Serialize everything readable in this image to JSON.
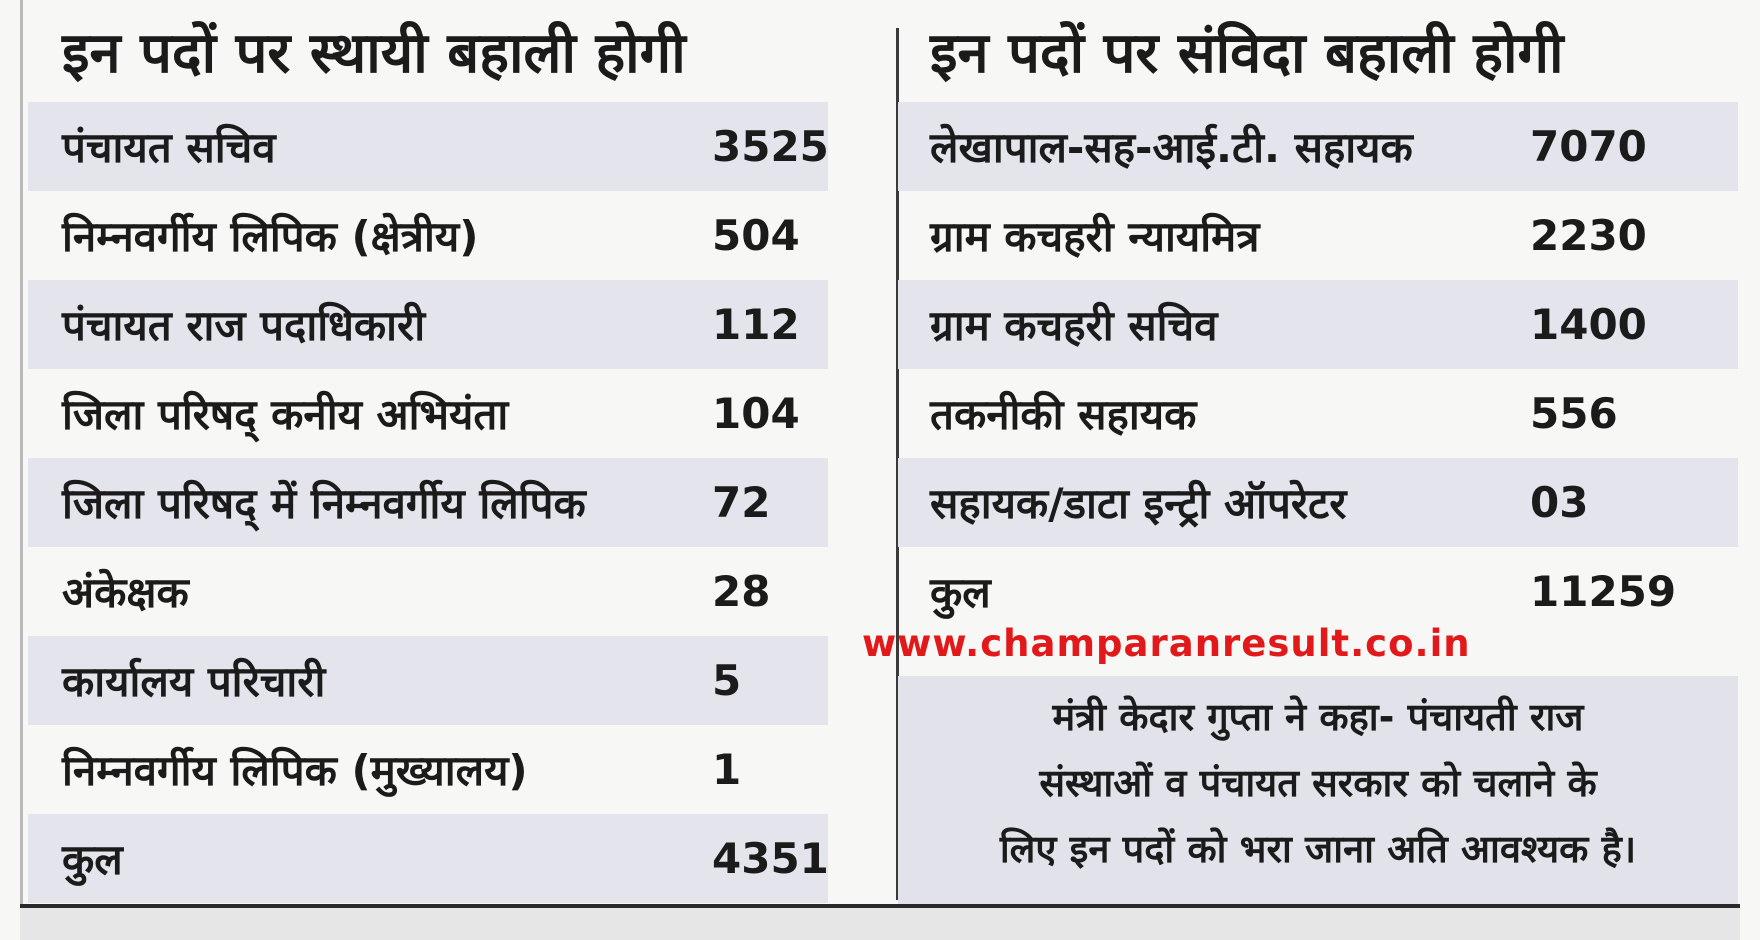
{
  "left": {
    "heading": "इन पदों पर स्थायी बहाली होगी",
    "rows": [
      {
        "label": "पंचायत सचिव",
        "value": "3525"
      },
      {
        "label": "निम्नवर्गीय लिपिक (क्षेत्रीय)",
        "value": "504"
      },
      {
        "label": "पंचायत राज पदाधिकारी",
        "value": "112"
      },
      {
        "label": "जिला परिषद् कनीय अभियंता",
        "value": "104"
      },
      {
        "label": "जिला परिषद् में निम्नवर्गीय लिपिक",
        "value": "72"
      },
      {
        "label": "अंकेक्षक",
        "value": "28"
      },
      {
        "label": "कार्यालय परिचारी",
        "value": "5"
      },
      {
        "label": "निम्नवर्गीय लिपिक (मुख्यालय)",
        "value": "1"
      },
      {
        "label": "कुल",
        "value": "4351"
      }
    ]
  },
  "right": {
    "heading": "इन पदों पर संविदा बहाली होगी",
    "rows": [
      {
        "label": "लेखापाल-सह-आई.टी. सहायक",
        "value": "7070"
      },
      {
        "label": "ग्राम कचहरी न्यायमित्र",
        "value": "2230"
      },
      {
        "label": "ग्राम कचहरी सचिव",
        "value": "1400"
      },
      {
        "label": "तकनीकी सहायक",
        "value": "556"
      },
      {
        "label": "सहायक/डाटा इन्ट्री ऑपरेटर",
        "value": "03"
      },
      {
        "label": "कुल",
        "value": "11259"
      }
    ]
  },
  "website": "www.champaranresult.co.in",
  "quote": {
    "line1": "मंत्री केदार गुप्ता ने कहा- पंचायती राज",
    "line2": "संस्थाओं व पंचायत सरकार को चलाने के",
    "line3": "लिए इन पदों को भरा जाना अति आवश्यक है।"
  }
}
